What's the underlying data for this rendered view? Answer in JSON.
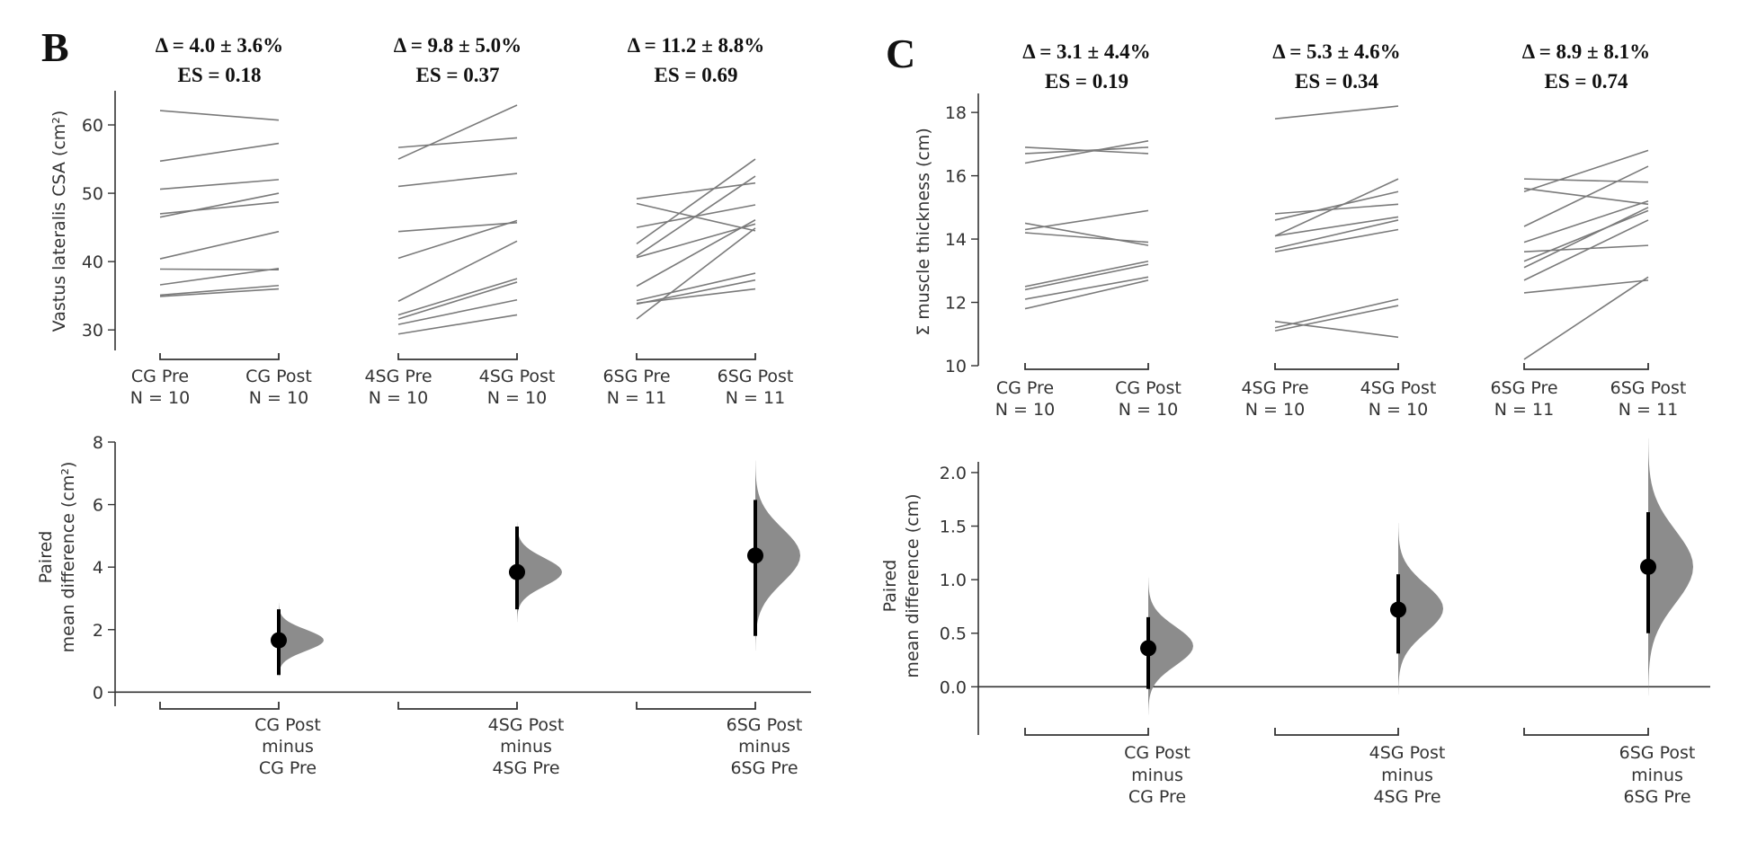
{
  "panels": [
    {
      "letter": "B",
      "top": {
        "ylabel": "Vastus lateralis CSA (cm²)",
        "yticks": [
          30,
          40,
          50,
          60
        ],
        "ylim": [
          27,
          65
        ],
        "groups": [
          {
            "stat": "Δ = 4.0 ± 3.6%",
            "es": "ES = 0.18",
            "pre_label": "CG Pre",
            "pre_n": "N = 10",
            "post_label": "CG Post",
            "post_n": "N = 10",
            "pairs": [
              [
                62.1,
                60.7
              ],
              [
                54.7,
                57.3
              ],
              [
                50.6,
                52.0
              ],
              [
                47.0,
                48.7
              ],
              [
                46.5,
                50.0
              ],
              [
                40.4,
                44.4
              ],
              [
                38.9,
                38.8
              ],
              [
                36.6,
                39.0
              ],
              [
                35.1,
                36.5
              ],
              [
                34.9,
                36.0
              ]
            ]
          },
          {
            "stat": "Δ = 9.8 ± 5.0%",
            "es": "ES = 0.37",
            "pre_label": "4SG Pre",
            "pre_n": "N = 10",
            "post_label": "4SG Post",
            "post_n": "N = 10",
            "pairs": [
              [
                56.7,
                58.1
              ],
              [
                55.0,
                62.9
              ],
              [
                51.0,
                52.9
              ],
              [
                44.4,
                45.7
              ],
              [
                40.5,
                46.0
              ],
              [
                34.2,
                43.0
              ],
              [
                32.2,
                37.5
              ],
              [
                31.6,
                37.0
              ],
              [
                30.8,
                34.4
              ],
              [
                29.4,
                32.2
              ]
            ]
          },
          {
            "stat": "Δ = 11.2 ± 8.8%",
            "es": "ES = 0.69",
            "pre_label": "6SG Pre",
            "pre_n": "N = 11",
            "post_label": "6SG Post",
            "post_n": "N = 11",
            "pairs": [
              [
                49.2,
                51.5
              ],
              [
                48.5,
                44.5
              ],
              [
                45.0,
                48.3
              ],
              [
                42.6,
                55.0
              ],
              [
                40.8,
                52.5
              ],
              [
                40.6,
                45.5
              ],
              [
                36.4,
                46.1
              ],
              [
                34.3,
                38.3
              ],
              [
                33.8,
                37.3
              ],
              [
                33.9,
                36.0
              ],
              [
                31.6,
                44.9
              ]
            ]
          }
        ]
      },
      "bottom": {
        "ylabel_line1": "Paired",
        "ylabel_line2": "mean difference (cm²)",
        "yticks": [
          0,
          2,
          4,
          6,
          8
        ],
        "ylim": [
          -0.45,
          8
        ],
        "effects": [
          {
            "line1": "CG Post",
            "line2": "minus",
            "line3": "CG Pre",
            "mean": 1.66,
            "ci": [
              0.55,
              2.65
            ],
            "spread": 0.75,
            "peak": 1.66
          },
          {
            "line1": "4SG Post",
            "line2": "minus",
            "line3": "4SG Pre",
            "mean": 3.84,
            "ci": [
              2.65,
              5.3
            ],
            "spread": 1.0,
            "peak": 3.84
          },
          {
            "line1": "6SG Post",
            "line2": "minus",
            "line3": "6SG Pre",
            "mean": 4.37,
            "ci": [
              1.8,
              6.15
            ],
            "spread": 1.9,
            "peak": 4.37
          }
        ]
      }
    },
    {
      "letter": "C",
      "top": {
        "ylabel": "Σ muscle thickness (cm)",
        "yticks": [
          10,
          12,
          14,
          16,
          18
        ],
        "ylim": [
          10,
          18.6
        ],
        "groups": [
          {
            "stat": "Δ = 3.1 ± 4.4%",
            "es": "ES = 0.19",
            "pre_label": "CG Pre",
            "pre_n": "N = 10",
            "post_label": "CG Post",
            "post_n": "N = 10",
            "pairs": [
              [
                16.9,
                16.7
              ],
              [
                16.7,
                16.9
              ],
              [
                16.4,
                17.1
              ],
              [
                14.5,
                13.8
              ],
              [
                14.3,
                14.9
              ],
              [
                14.2,
                13.9
              ],
              [
                12.5,
                13.3
              ],
              [
                12.4,
                13.2
              ],
              [
                12.1,
                12.8
              ],
              [
                11.8,
                12.7
              ]
            ]
          },
          {
            "stat": "Δ = 5.3 ± 4.6%",
            "es": "ES = 0.34",
            "pre_label": "4SG Pre",
            "pre_n": "N = 10",
            "post_label": "4SG Post",
            "post_n": "N = 10",
            "pairs": [
              [
                17.8,
                18.2
              ],
              [
                14.8,
                15.1
              ],
              [
                14.6,
                15.5
              ],
              [
                14.1,
                15.9
              ],
              [
                14.1,
                14.7
              ],
              [
                13.7,
                14.6
              ],
              [
                13.6,
                14.3
              ],
              [
                11.4,
                10.9
              ],
              [
                11.2,
                12.1
              ],
              [
                11.1,
                11.9
              ]
            ]
          },
          {
            "stat": "Δ = 8.9 ± 8.1%",
            "es": "ES = 0.74",
            "pre_label": "6SG Pre",
            "pre_n": "N = 11",
            "post_label": "6SG Post",
            "post_n": "N = 11",
            "pairs": [
              [
                15.9,
                15.8
              ],
              [
                15.6,
                15.1
              ],
              [
                15.5,
                16.8
              ],
              [
                14.4,
                16.3
              ],
              [
                13.9,
                15.2
              ],
              [
                13.6,
                13.8
              ],
              [
                13.3,
                14.9
              ],
              [
                13.1,
                15.0
              ],
              [
                12.7,
                14.6
              ],
              [
                12.3,
                12.7
              ],
              [
                10.2,
                12.8
              ]
            ]
          }
        ]
      },
      "bottom": {
        "ylabel_line1": "Paired",
        "ylabel_line2": "mean difference (cm)",
        "yticks": [
          "0.0",
          "0.5",
          "1.0",
          "1.5",
          "2.0"
        ],
        "ylim": [
          -0.45,
          2.1
        ],
        "effects": [
          {
            "line1": "CG Post",
            "line2": "minus",
            "line3": "CG Pre",
            "mean": 0.36,
            "ci": [
              -0.02,
              0.65
            ],
            "spread": 0.4,
            "peak": 0.38
          },
          {
            "line1": "4SG Post",
            "line2": "minus",
            "line3": "4SG Pre",
            "mean": 0.72,
            "ci": [
              0.31,
              1.05
            ],
            "spread": 0.5,
            "peak": 0.73
          },
          {
            "line1": "6SG Post",
            "line2": "minus",
            "line3": "6SG Pre",
            "mean": 1.12,
            "ci": [
              0.5,
              1.63
            ],
            "spread": 0.75,
            "peak": 1.12
          }
        ]
      }
    }
  ],
  "chart_data": [
    {
      "type": "line",
      "panel": "B (top)",
      "ylabel": "Vastus lateralis CSA (cm²)",
      "ylim": [
        27,
        65
      ],
      "categories": [
        "CG Pre",
        "CG Post",
        "4SG Pre",
        "4SG Post",
        "6SG Pre",
        "6SG Post"
      ],
      "annotations": [
        "Δ = 4.0 ± 3.6%",
        "ES = 0.18",
        "Δ = 9.8 ± 5.0%",
        "ES = 0.37",
        "Δ = 11.2 ± 8.8%",
        "ES = 0.69"
      ]
    },
    {
      "type": "scatter",
      "panel": "B (bottom)",
      "ylabel": "Paired mean difference (cm²)",
      "ylim": [
        0,
        8
      ],
      "categories": [
        "CG Post minus CG Pre",
        "4SG Post minus 4SG Pre",
        "6SG Post minus 6SG Pre"
      ],
      "values": [
        1.66,
        3.84,
        4.37
      ],
      "ci_low": [
        0.55,
        2.65,
        1.8
      ],
      "ci_high": [
        2.65,
        5.3,
        6.15
      ]
    },
    {
      "type": "line",
      "panel": "C (top)",
      "ylabel": "Σ muscle thickness (cm)",
      "ylim": [
        10,
        18.6
      ],
      "categories": [
        "CG Pre",
        "CG Post",
        "4SG Pre",
        "4SG Post",
        "6SG Pre",
        "6SG Post"
      ],
      "annotations": [
        "Δ = 3.1 ± 4.4%",
        "ES = 0.19",
        "Δ = 5.3 ± 4.6%",
        "ES = 0.34",
        "Δ = 8.9 ± 8.1%",
        "ES = 0.74"
      ]
    },
    {
      "type": "scatter",
      "panel": "C (bottom)",
      "ylabel": "Paired mean difference (cm)",
      "ylim": [
        0,
        2.0
      ],
      "categories": [
        "CG Post minus CG Pre",
        "4SG Post minus 4SG Pre",
        "6SG Post minus 6SG Pre"
      ],
      "values": [
        0.36,
        0.72,
        1.12
      ],
      "ci_low": [
        -0.02,
        0.31,
        0.5
      ],
      "ci_high": [
        0.65,
        1.05,
        1.63
      ]
    }
  ]
}
